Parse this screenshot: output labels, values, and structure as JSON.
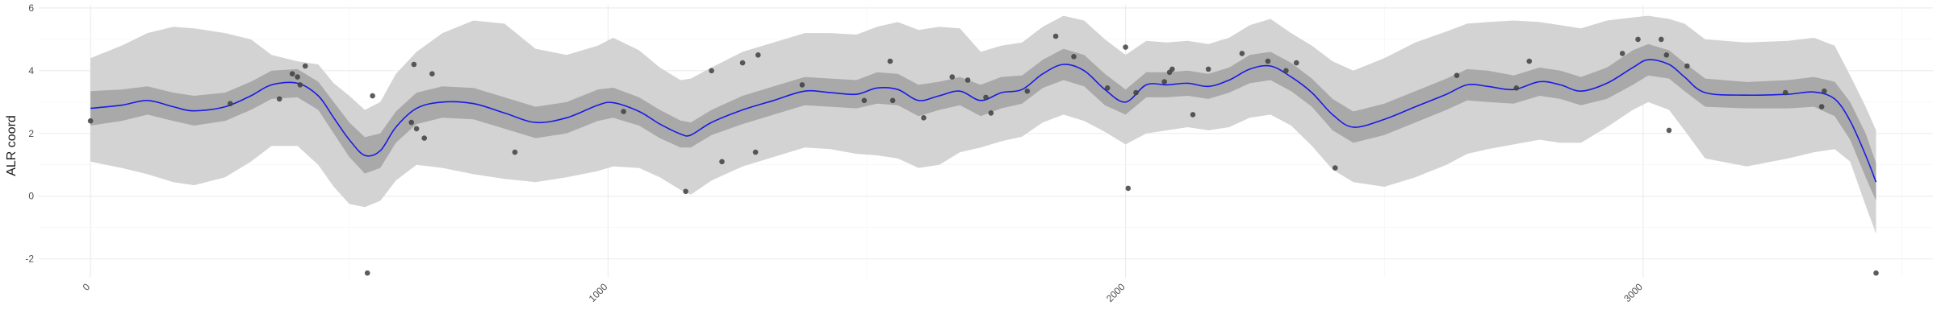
{
  "chart_data": {
    "type": "scatter",
    "ylabel": "ALR coord",
    "xlabel": "",
    "title": "",
    "xlim": [
      -100,
      3560
    ],
    "ylim": [
      -2.6,
      6.1
    ],
    "x_ticks": [
      0,
      1000,
      2000,
      3000
    ],
    "x_tick_labels": [
      "0",
      "1000",
      "2000",
      "3000"
    ],
    "y_ticks": [
      -2,
      0,
      2,
      4,
      6
    ],
    "y_tick_labels": [
      "-2",
      "0",
      "2",
      "4",
      "6"
    ],
    "grid": true,
    "legend": "none",
    "colors": {
      "points": "#404040",
      "smooth_line": "#1a1ae6",
      "inner_band": "#a9a9a9",
      "outer_band": "#d3d3d3"
    },
    "points": [
      {
        "x": 0,
        "y": 2.4
      },
      {
        "x": 270,
        "y": 2.95
      },
      {
        "x": 365,
        "y": 3.1
      },
      {
        "x": 390,
        "y": 3.9
      },
      {
        "x": 400,
        "y": 3.8
      },
      {
        "x": 405,
        "y": 3.55
      },
      {
        "x": 415,
        "y": 4.15
      },
      {
        "x": 535,
        "y": -2.45
      },
      {
        "x": 545,
        "y": 3.2
      },
      {
        "x": 620,
        "y": 2.35
      },
      {
        "x": 625,
        "y": 4.2
      },
      {
        "x": 630,
        "y": 2.15
      },
      {
        "x": 645,
        "y": 1.85
      },
      {
        "x": 660,
        "y": 3.9
      },
      {
        "x": 820,
        "y": 1.4
      },
      {
        "x": 1030,
        "y": 2.7
      },
      {
        "x": 1150,
        "y": 0.15
      },
      {
        "x": 1200,
        "y": 4.0
      },
      {
        "x": 1220,
        "y": 1.1
      },
      {
        "x": 1260,
        "y": 4.25
      },
      {
        "x": 1285,
        "y": 1.4
      },
      {
        "x": 1290,
        "y": 4.5
      },
      {
        "x": 1375,
        "y": 3.55
      },
      {
        "x": 1495,
        "y": 3.05
      },
      {
        "x": 1545,
        "y": 4.3
      },
      {
        "x": 1550,
        "y": 3.05
      },
      {
        "x": 1610,
        "y": 2.5
      },
      {
        "x": 1665,
        "y": 3.8
      },
      {
        "x": 1695,
        "y": 3.7
      },
      {
        "x": 1730,
        "y": 3.15
      },
      {
        "x": 1740,
        "y": 2.65
      },
      {
        "x": 1810,
        "y": 3.35
      },
      {
        "x": 1865,
        "y": 5.1
      },
      {
        "x": 1900,
        "y": 4.45
      },
      {
        "x": 1965,
        "y": 3.45
      },
      {
        "x": 2000,
        "y": 4.75
      },
      {
        "x": 2005,
        "y": 0.25
      },
      {
        "x": 2020,
        "y": 3.3
      },
      {
        "x": 2075,
        "y": 3.65
      },
      {
        "x": 2085,
        "y": 3.95
      },
      {
        "x": 2090,
        "y": 4.05
      },
      {
        "x": 2130,
        "y": 2.6
      },
      {
        "x": 2160,
        "y": 4.05
      },
      {
        "x": 2225,
        "y": 4.55
      },
      {
        "x": 2275,
        "y": 4.3
      },
      {
        "x": 2310,
        "y": 4.0
      },
      {
        "x": 2330,
        "y": 4.25
      },
      {
        "x": 2405,
        "y": 0.9
      },
      {
        "x": 2640,
        "y": 3.85
      },
      {
        "x": 2755,
        "y": 3.45
      },
      {
        "x": 2780,
        "y": 4.3
      },
      {
        "x": 2960,
        "y": 4.55
      },
      {
        "x": 2990,
        "y": 5.0
      },
      {
        "x": 3035,
        "y": 5.0
      },
      {
        "x": 3045,
        "y": 4.5
      },
      {
        "x": 3050,
        "y": 2.1
      },
      {
        "x": 3085,
        "y": 4.15
      },
      {
        "x": 3275,
        "y": 3.3
      },
      {
        "x": 3345,
        "y": 2.85
      },
      {
        "x": 3350,
        "y": 3.35
      },
      {
        "x": 3450,
        "y": -2.45
      }
    ],
    "smooth": {
      "method": "loess",
      "x": [
        0,
        60,
        110,
        160,
        200,
        260,
        310,
        350,
        400,
        440,
        470,
        500,
        530,
        560,
        590,
        630,
        680,
        740,
        800,
        860,
        920,
        980,
        1010,
        1060,
        1100,
        1140,
        1160,
        1200,
        1260,
        1320,
        1380,
        1430,
        1480,
        1520,
        1560,
        1600,
        1640,
        1680,
        1720,
        1760,
        1800,
        1840,
        1880,
        1920,
        1960,
        2000,
        2040,
        2080,
        2120,
        2160,
        2200,
        2240,
        2280,
        2320,
        2360,
        2400,
        2440,
        2500,
        2560,
        2620,
        2660,
        2700,
        2750,
        2800,
        2840,
        2880,
        2930,
        2980,
        3010,
        3050,
        3080,
        3120,
        3200,
        3280,
        3330,
        3370,
        3400,
        3430,
        3450
      ],
      "y": [
        2.8,
        2.9,
        3.05,
        2.85,
        2.72,
        2.85,
        3.2,
        3.55,
        3.6,
        3.2,
        2.5,
        1.8,
        1.3,
        1.45,
        2.2,
        2.8,
        3.0,
        2.95,
        2.65,
        2.35,
        2.5,
        2.9,
        2.98,
        2.7,
        2.3,
        1.98,
        1.95,
        2.35,
        2.75,
        3.05,
        3.35,
        3.3,
        3.25,
        3.45,
        3.4,
        3.05,
        3.2,
        3.35,
        3.05,
        3.3,
        3.4,
        3.9,
        4.2,
        4.0,
        3.4,
        3.0,
        3.55,
        3.55,
        3.6,
        3.5,
        3.7,
        4.05,
        4.15,
        3.8,
        3.3,
        2.6,
        2.2,
        2.45,
        2.85,
        3.25,
        3.55,
        3.5,
        3.4,
        3.65,
        3.55,
        3.35,
        3.6,
        4.1,
        4.35,
        4.2,
        3.8,
        3.3,
        3.22,
        3.25,
        3.32,
        3.1,
        2.4,
        1.3,
        0.45
      ],
      "inner_lower": [
        2.25,
        2.4,
        2.6,
        2.4,
        2.25,
        2.4,
        2.75,
        3.1,
        3.15,
        2.75,
        2.0,
        1.25,
        0.72,
        0.9,
        1.7,
        2.3,
        2.5,
        2.45,
        2.15,
        1.85,
        2.0,
        2.4,
        2.5,
        2.25,
        1.85,
        1.55,
        1.55,
        1.95,
        2.3,
        2.6,
        2.9,
        2.85,
        2.8,
        2.95,
        2.9,
        2.55,
        2.75,
        2.9,
        2.55,
        2.8,
        2.95,
        3.45,
        3.7,
        3.5,
        2.9,
        2.6,
        3.15,
        3.15,
        3.2,
        3.1,
        3.3,
        3.6,
        3.7,
        3.35,
        2.85,
        2.1,
        1.7,
        1.95,
        2.35,
        2.75,
        3.05,
        3.0,
        2.95,
        3.2,
        3.1,
        2.9,
        3.1,
        3.55,
        3.85,
        3.75,
        3.35,
        2.85,
        2.8,
        2.8,
        2.85,
        2.55,
        1.8,
        0.6,
        -0.15
      ],
      "inner_upper": [
        3.35,
        3.4,
        3.5,
        3.3,
        3.2,
        3.3,
        3.65,
        4.0,
        4.05,
        3.65,
        3.0,
        2.35,
        1.88,
        2.0,
        2.7,
        3.3,
        3.5,
        3.45,
        3.15,
        2.85,
        3.0,
        3.4,
        3.46,
        3.15,
        2.75,
        2.41,
        2.35,
        2.75,
        3.2,
        3.5,
        3.8,
        3.75,
        3.7,
        3.95,
        3.9,
        3.55,
        3.65,
        3.8,
        3.55,
        3.8,
        3.85,
        4.35,
        4.7,
        4.5,
        3.9,
        3.4,
        3.95,
        3.95,
        4.0,
        3.9,
        4.1,
        4.5,
        4.6,
        4.25,
        3.75,
        3.1,
        2.7,
        2.95,
        3.35,
        3.75,
        4.05,
        4.0,
        3.85,
        4.1,
        4.0,
        3.8,
        4.1,
        4.65,
        4.85,
        4.65,
        4.25,
        3.75,
        3.64,
        3.7,
        3.8,
        3.65,
        3.0,
        2.0,
        1.05
      ],
      "outer_lower": [
        1.1,
        0.9,
        0.7,
        0.45,
        0.35,
        0.6,
        1.1,
        1.6,
        1.6,
        1.0,
        0.3,
        -0.25,
        -0.35,
        -0.15,
        0.5,
        1.0,
        0.9,
        0.7,
        0.55,
        0.45,
        0.6,
        0.8,
        0.95,
        0.9,
        0.6,
        0.2,
        0.05,
        0.5,
        0.95,
        1.25,
        1.55,
        1.5,
        1.35,
        1.3,
        1.2,
        0.9,
        1.0,
        1.4,
        1.55,
        1.75,
        1.9,
        2.35,
        2.6,
        2.4,
        2.05,
        1.65,
        2.0,
        2.1,
        2.2,
        2.1,
        2.2,
        2.5,
        2.6,
        2.25,
        1.6,
        0.85,
        0.45,
        0.3,
        0.6,
        1.0,
        1.35,
        1.5,
        1.65,
        1.8,
        1.7,
        1.7,
        2.2,
        2.75,
        3.0,
        2.75,
        2.1,
        1.2,
        0.95,
        1.2,
        1.4,
        1.5,
        1.1,
        -0.3,
        -1.2
      ],
      "outer_upper": [
        4.4,
        4.8,
        5.2,
        5.4,
        5.35,
        5.2,
        5.0,
        4.5,
        4.3,
        4.2,
        3.6,
        3.2,
        2.75,
        3.0,
        3.9,
        4.6,
        5.2,
        5.6,
        5.5,
        4.7,
        4.5,
        4.8,
        5.05,
        4.65,
        4.1,
        3.7,
        3.75,
        4.1,
        4.6,
        4.9,
        5.2,
        5.2,
        5.15,
        5.4,
        5.55,
        5.3,
        5.4,
        5.35,
        4.6,
        4.8,
        4.9,
        5.4,
        5.75,
        5.6,
        5.0,
        4.5,
        4.95,
        4.9,
        4.95,
        4.85,
        5.05,
        5.45,
        5.65,
        5.2,
        4.8,
        4.3,
        4.0,
        4.4,
        4.9,
        5.25,
        5.5,
        5.55,
        5.6,
        5.55,
        5.45,
        5.35,
        5.6,
        5.7,
        5.75,
        5.65,
        5.5,
        5.0,
        4.9,
        4.95,
        5.05,
        4.8,
        3.85,
        2.85,
        2.1
      ]
    }
  }
}
